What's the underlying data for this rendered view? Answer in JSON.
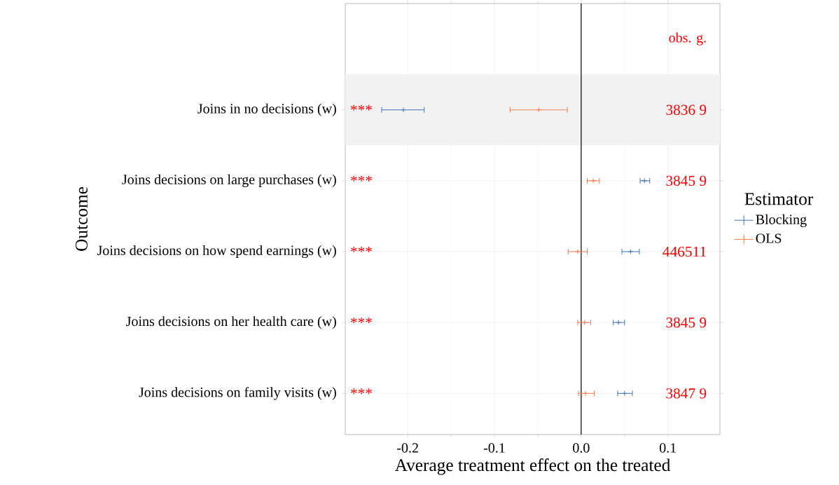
{
  "chart_data": {
    "type": "scatter",
    "orientation": "horizontal",
    "xlabel": "Average treatment effect on the treated",
    "ylabel": "Outcome",
    "legend_title": "Estimator",
    "legend": "right",
    "grid": true,
    "categories": [
      "Joins in no decisions (w)",
      "Joins decisions on large purchases (w)",
      "Joins decisions on how spend earnings (w)",
      "Joins decisions on her health care (w)",
      "Joins decisions on family visits (w)"
    ],
    "series": [
      {
        "name": "Blocking",
        "color": "#4a7db5",
        "values": [
          -0.205,
          0.073,
          0.057,
          0.043,
          0.05
        ],
        "errors": [
          [
            -0.23,
            -0.181
          ],
          [
            0.068,
            0.079
          ],
          [
            0.047,
            0.067
          ],
          [
            0.037,
            0.05
          ],
          [
            0.042,
            0.059
          ]
        ]
      },
      {
        "name": "OLS",
        "color": "#f08058",
        "values": [
          -0.049,
          0.014,
          -0.004,
          0.004,
          0.005
        ],
        "errors": [
          [
            -0.082,
            -0.016
          ],
          [
            0.007,
            0.021
          ],
          [
            -0.015,
            0.007
          ],
          [
            -0.004,
            0.011
          ],
          [
            -0.003,
            0.015
          ]
        ]
      }
    ],
    "xlim": [
      -0.272,
      0.16
    ],
    "xticks": [
      -0.2,
      -0.1,
      {
        "value": 0,
        "label": "0.0"
      },
      0.1
    ],
    "ref_lines": [
      {
        "axis": "x",
        "value": 0,
        "color": "#000000"
      }
    ],
    "bands": [
      {
        "axis": "y",
        "from": "Joins in no decisions (w)",
        "to": "Joins in no decisions (w)",
        "color": "#f2f2f2"
      }
    ],
    "annotations": [
      "obs. g.",
      "***",
      "***",
      "***",
      "***",
      "***",
      "3836 9",
      "3845 9",
      "446511",
      "3845 9",
      "3847 9"
    ]
  }
}
